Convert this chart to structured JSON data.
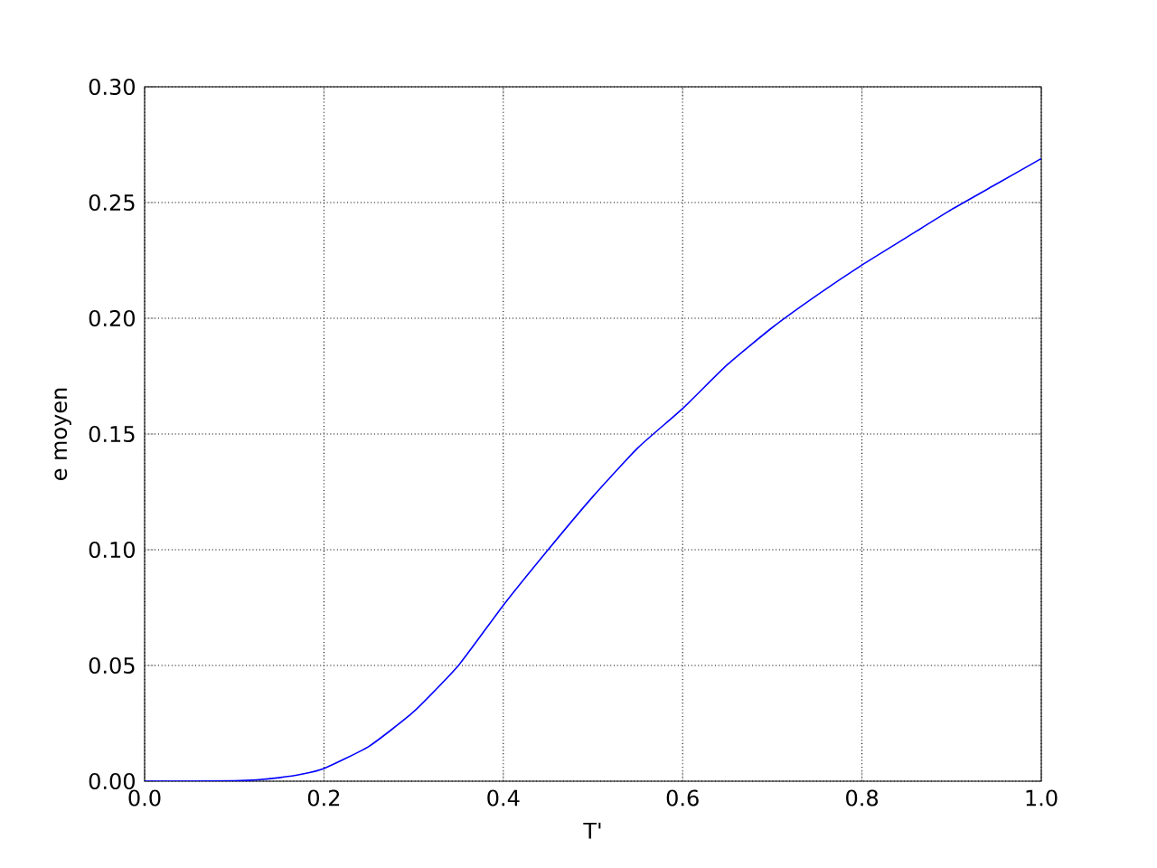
{
  "chart_data": {
    "type": "line",
    "xlabel": "T'",
    "ylabel": "e moyen",
    "x": [
      0.0,
      0.05,
      0.1,
      0.125,
      0.15,
      0.175,
      0.2,
      0.25,
      0.3,
      0.35,
      0.4,
      0.45,
      0.5,
      0.55,
      0.6,
      0.65,
      0.7,
      0.75,
      0.8,
      0.85,
      0.9,
      0.95,
      1.0
    ],
    "series": [
      {
        "color": "#0000ff",
        "values": [
          0.0,
          0.0,
          0.0002,
          0.0006,
          0.0015,
          0.003,
          0.0055,
          0.015,
          0.03,
          0.05,
          0.076,
          0.1,
          0.123,
          0.144,
          0.161,
          0.18,
          0.196,
          0.21,
          0.223,
          0.235,
          0.247,
          0.258,
          0.269
        ]
      }
    ],
    "xlim": [
      0.0,
      1.0
    ],
    "ylim": [
      0.0,
      0.3
    ],
    "xticks": [
      {
        "value": 0.0,
        "label": "0.0"
      },
      {
        "value": 0.2,
        "label": "0.2"
      },
      {
        "value": 0.4,
        "label": "0.4"
      },
      {
        "value": 0.6,
        "label": "0.6"
      },
      {
        "value": 0.8,
        "label": "0.8"
      },
      {
        "value": 1.0,
        "label": "1.0"
      }
    ],
    "yticks": [
      {
        "value": 0.0,
        "label": "0.00"
      },
      {
        "value": 0.05,
        "label": "0.05"
      },
      {
        "value": 0.1,
        "label": "0.10"
      },
      {
        "value": 0.15,
        "label": "0.15"
      },
      {
        "value": 0.2,
        "label": "0.20"
      },
      {
        "value": 0.25,
        "label": "0.25"
      },
      {
        "value": 0.3,
        "label": "0.30"
      }
    ],
    "grid": true,
    "marker": "none",
    "line_style": "solid"
  }
}
